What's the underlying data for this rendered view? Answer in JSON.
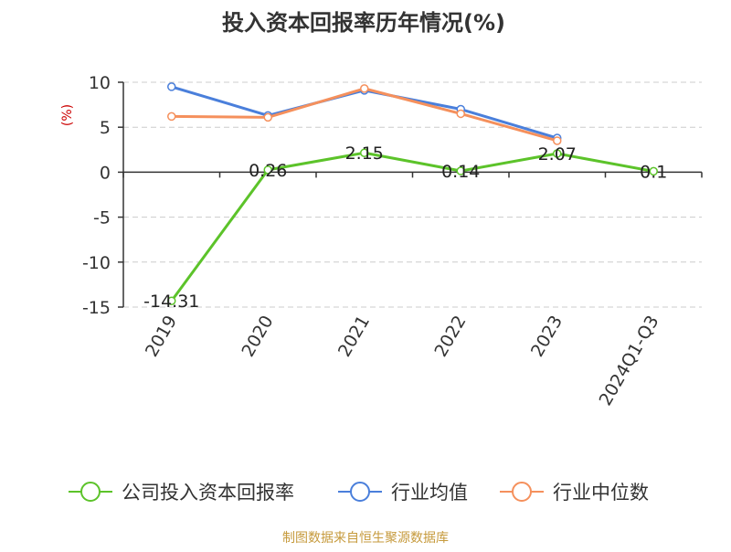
{
  "chart_data": {
    "type": "line",
    "title": "投入资本回报率历年情况(%)",
    "ylabel": "(%)",
    "xlabel": "",
    "categories": [
      "2019",
      "2020",
      "2021",
      "2022",
      "2023",
      "2024Q1-Q3"
    ],
    "ylim": [
      -15,
      10
    ],
    "yticks": [
      10,
      5,
      0,
      -5,
      -10,
      -15
    ],
    "grid": true,
    "legend_position": "bottom",
    "series": [
      {
        "name": "公司投入资本回报率",
        "color": "#5cc32a",
        "values": [
          -14.31,
          0.26,
          2.15,
          0.14,
          2.07,
          0.1
        ],
        "labels": [
          "-14.31",
          "0.26",
          "2.15",
          "0.14",
          "2.07",
          "0.1"
        ]
      },
      {
        "name": "行业均值",
        "color": "#4a7fdb",
        "values": [
          9.5,
          6.3,
          9.1,
          7.0,
          3.8,
          null
        ]
      },
      {
        "name": "行业中位数",
        "color": "#f5905c",
        "values": [
          6.2,
          6.1,
          9.3,
          6.5,
          3.5,
          null
        ]
      }
    ]
  },
  "colors": {
    "axis_label": "#cc0000",
    "source_text": "#c69a3c",
    "grid": "#cccccc"
  },
  "footer": {
    "source": "制图数据来自恒生聚源数据库"
  }
}
